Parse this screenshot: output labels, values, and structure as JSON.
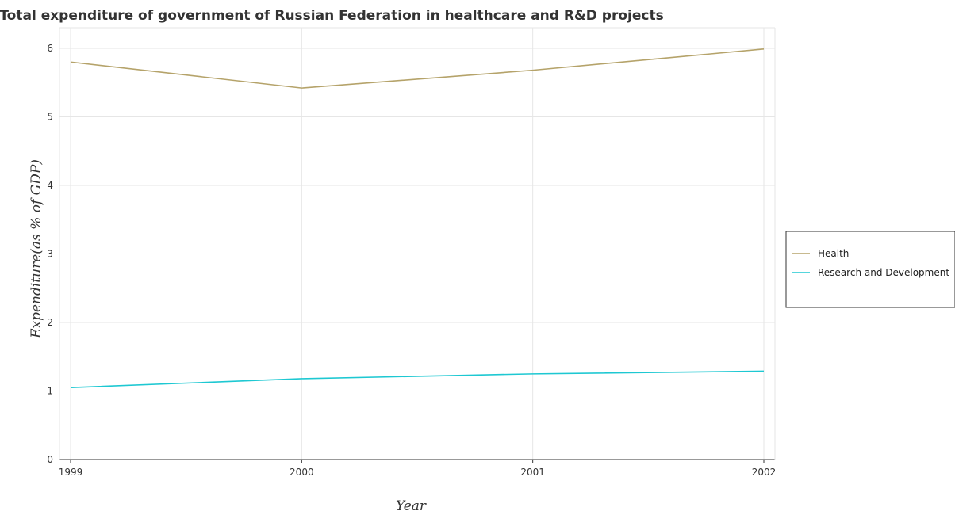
{
  "chart_data": {
    "type": "line",
    "title": "Total expenditure of government of Russian Federation in healthcare and R&D projects",
    "xlabel": "Year",
    "ylabel": "Expenditure(as % of GDP)",
    "categories": [
      "1999",
      "2000",
      "2001",
      "2002"
    ],
    "ylim": [
      0,
      6.3
    ],
    "yticks": [
      0,
      1,
      2,
      3,
      4,
      5,
      6
    ],
    "ytick_labels": [
      "0",
      "1",
      "2",
      "3",
      "4",
      "5",
      "6"
    ],
    "grid": true,
    "legend_position": "right",
    "series": [
      {
        "name": "Health",
        "color": "#b5a36a",
        "values": [
          5.8,
          5.42,
          5.68,
          5.99
        ]
      },
      {
        "name": "Research and Development",
        "color": "#1ec8d2",
        "values": [
          1.05,
          1.18,
          1.25,
          1.29
        ]
      }
    ]
  }
}
